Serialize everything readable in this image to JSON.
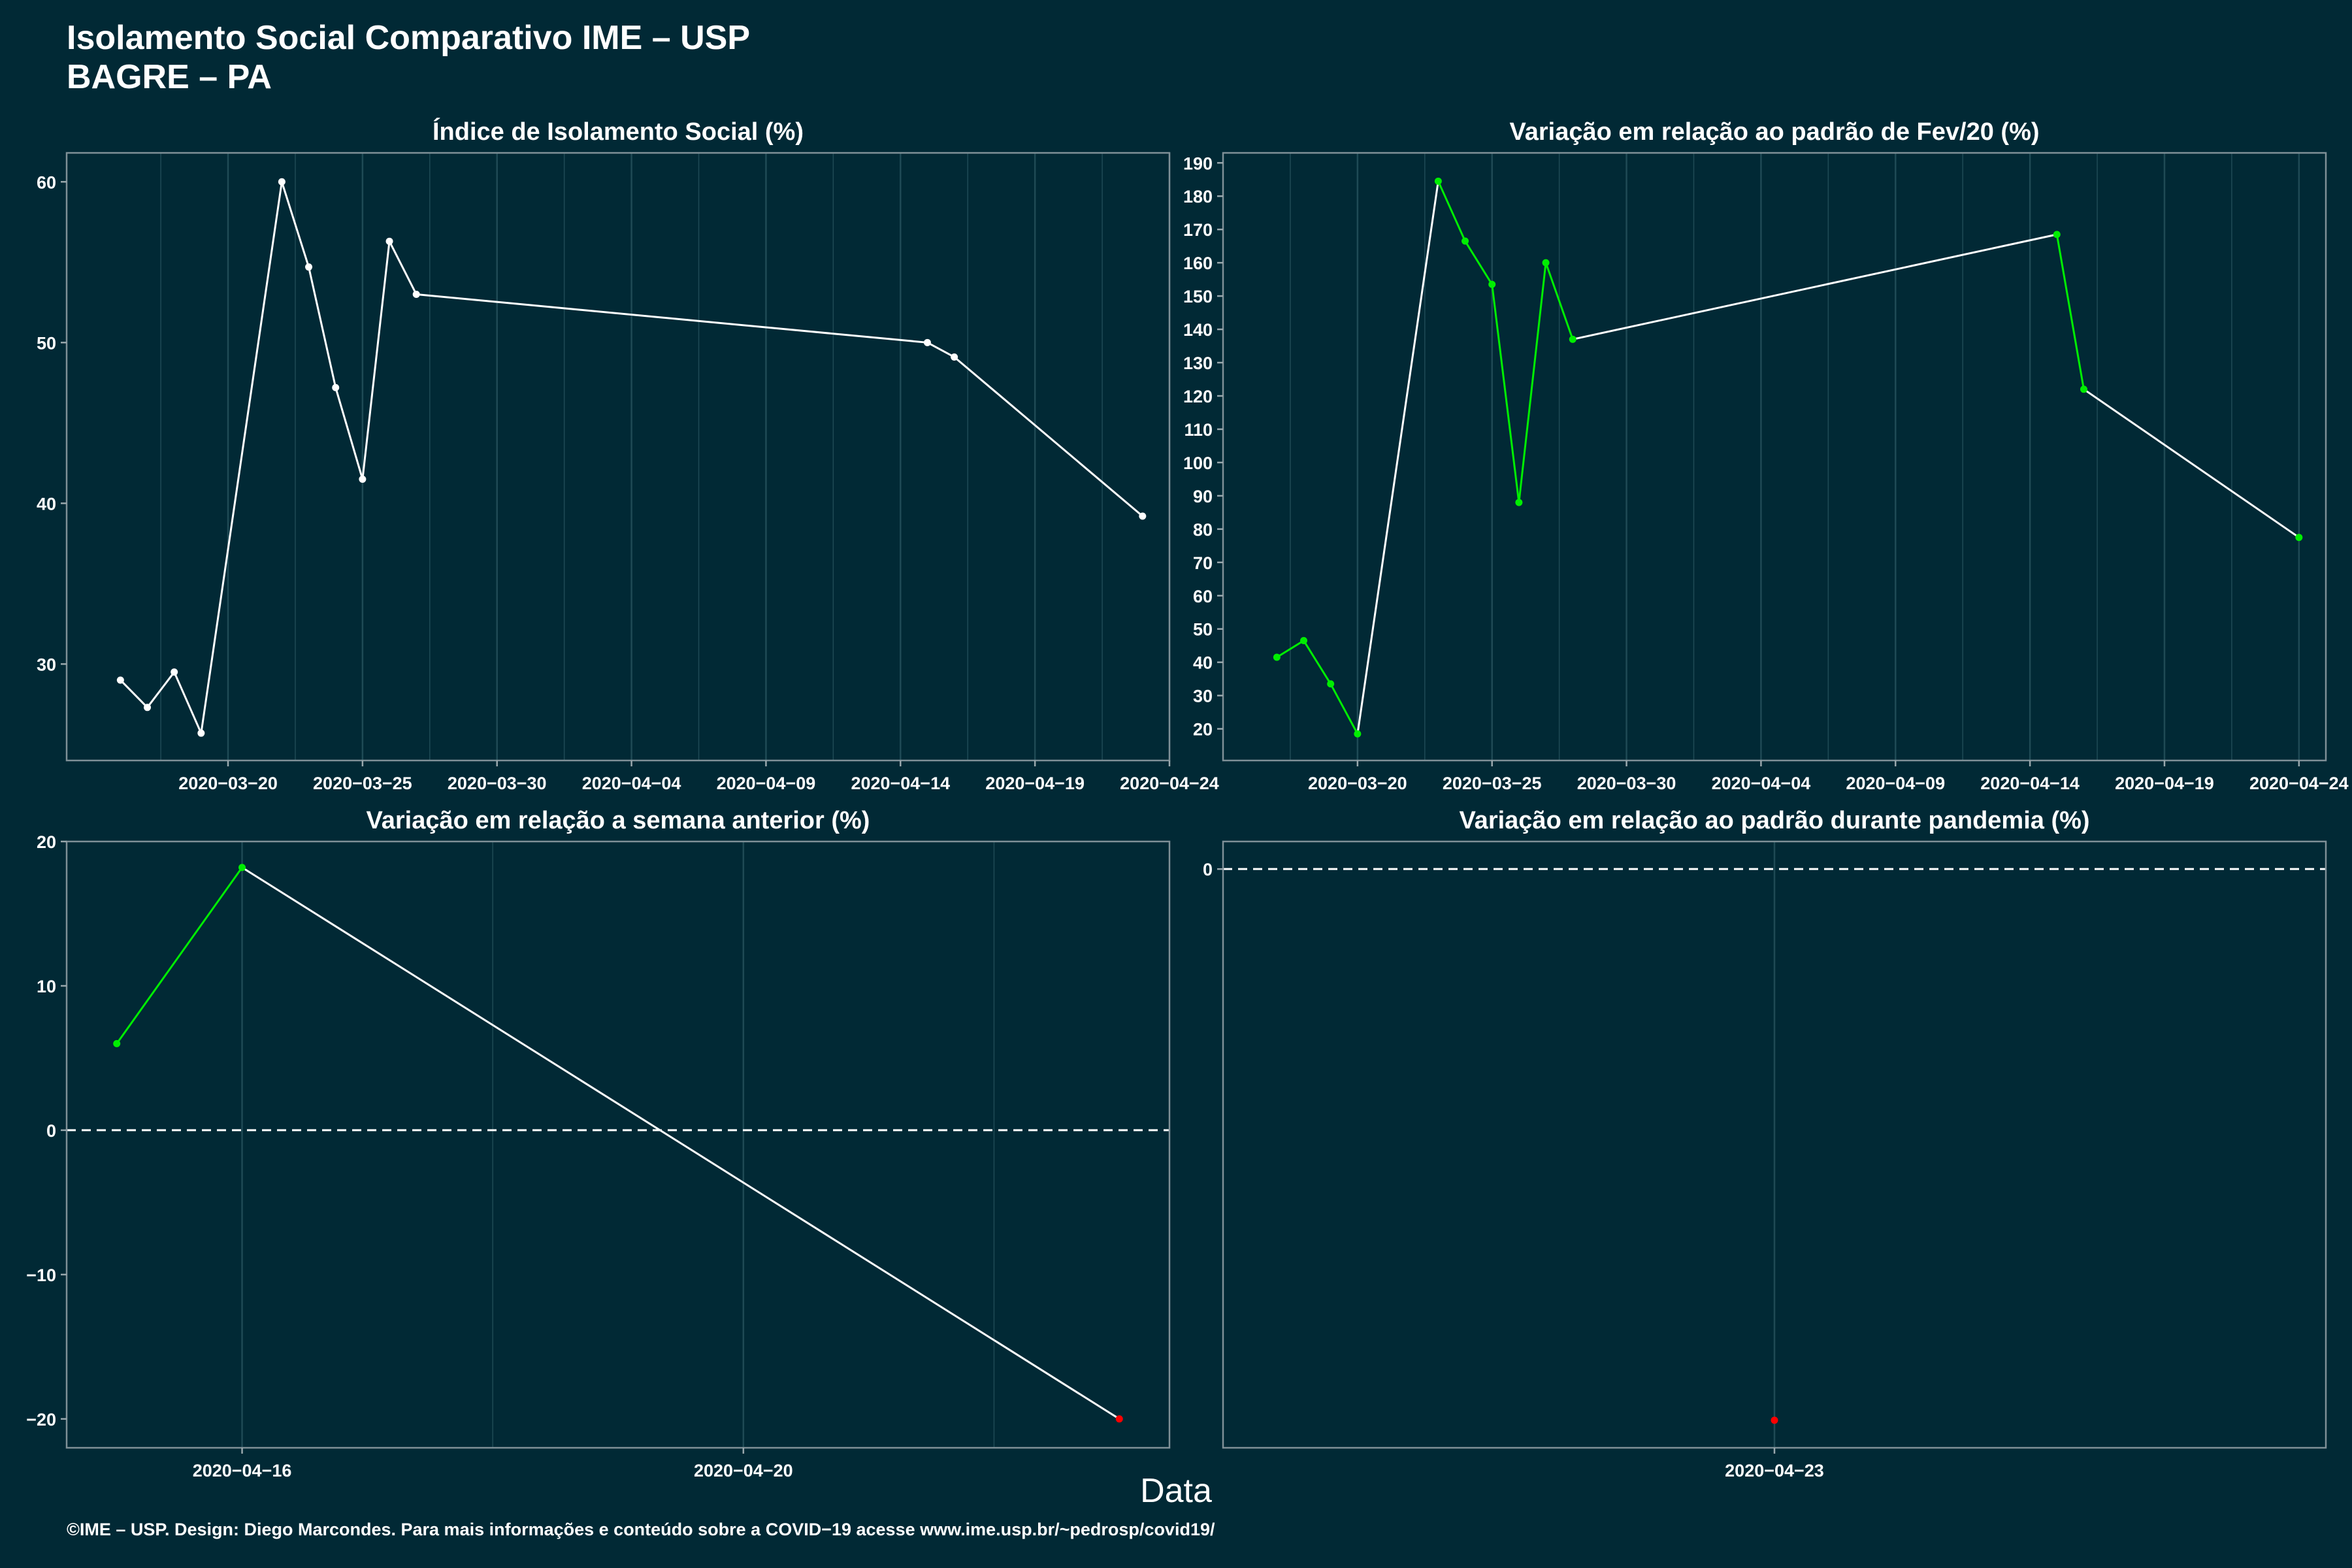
{
  "header": {
    "title_line1": "Isolamento Social Comparativo IME – USP",
    "title_line2": "BAGRE – PA"
  },
  "xlabel": "Data",
  "footer": "©IME – USP. Design: Diego Marcondes. Para mais informações e conteúdo sobre a COVID−19 acesse www.ime.usp.br/~pedrosp/covid19/",
  "colors": {
    "background": "#012935",
    "line": "#ffffff",
    "increase": "#00ee00",
    "decrease": "#ff0000",
    "grid": "#1f4a55"
  },
  "chart_data": [
    {
      "type": "line",
      "title": "Índice de Isolamento Social (%)",
      "x": [
        "2020-03-16",
        "2020-03-17",
        "2020-03-18",
        "2020-03-19",
        "2020-03-22",
        "2020-03-23",
        "2020-03-24",
        "2020-03-25",
        "2020-03-26",
        "2020-03-27",
        "2020-04-15",
        "2020-04-16",
        "2020-04-23"
      ],
      "y": [
        29.0,
        27.3,
        29.5,
        25.7,
        60.0,
        54.7,
        47.2,
        41.5,
        56.3,
        53.0,
        50.0,
        49.1,
        39.2
      ],
      "point_colors": [
        "white",
        "white",
        "white",
        "white",
        "white",
        "white",
        "white",
        "white",
        "white",
        "white",
        "white",
        "white",
        "white"
      ],
      "xlim": [
        "2020-03-14",
        "2020-04-24"
      ],
      "ylim": [
        24.0,
        61.8
      ],
      "yticks": [
        30,
        40,
        50,
        60
      ],
      "xticks": [
        "2020-03-20",
        "2020-03-25",
        "2020-03-30",
        "2020-04-04",
        "2020-04-09",
        "2020-04-14",
        "2020-04-19",
        "2020-04-24"
      ],
      "xlabel": "",
      "ylabel": ""
    },
    {
      "type": "line",
      "title": "Variação em relação ao padrão de Fev/20 (%)",
      "x": [
        "2020-03-17",
        "2020-03-18",
        "2020-03-19",
        "2020-03-20",
        "2020-03-23",
        "2020-03-24",
        "2020-03-25",
        "2020-03-26",
        "2020-03-27",
        "2020-03-28",
        "2020-04-15",
        "2020-04-16",
        "2020-04-24"
      ],
      "y": [
        41.5,
        46.5,
        33.5,
        18.5,
        184.5,
        166.5,
        153.5,
        88,
        160,
        137,
        168.5,
        122,
        77.5
      ],
      "point_colors": [
        "green",
        "green",
        "green",
        "green",
        "green",
        "green",
        "green",
        "green",
        "green",
        "green",
        "green",
        "green",
        "green"
      ],
      "xlim": [
        "2020-03-15",
        "2020-04-25"
      ],
      "ylim": [
        10.5,
        193
      ],
      "yticks": [
        20,
        30,
        40,
        50,
        60,
        70,
        80,
        90,
        100,
        110,
        120,
        130,
        140,
        150,
        160,
        170,
        180,
        190
      ],
      "xticks": [
        "2020-03-20",
        "2020-03-25",
        "2020-03-30",
        "2020-04-04",
        "2020-04-09",
        "2020-04-14",
        "2020-04-19",
        "2020-04-24"
      ],
      "xlabel": "",
      "ylabel": ""
    },
    {
      "type": "line",
      "title": "Variação em relação a semana anterior (%)",
      "x": [
        "2020-04-15",
        "2020-04-16",
        "2020-04-23"
      ],
      "y": [
        6.0,
        18.2,
        -20.0
      ],
      "point_colors": [
        "green",
        "green",
        "red"
      ],
      "xlim": [
        "2020-04-14.6",
        "2020-04-23.4"
      ],
      "ylim": [
        -22.0,
        20.0
      ],
      "yticks": [
        -20,
        -10,
        0,
        10,
        20
      ],
      "xticks": [
        "2020-04-16",
        "2020-04-20"
      ],
      "reference_line": 0,
      "xlabel": "",
      "ylabel": ""
    },
    {
      "type": "scatter",
      "title": "Variação em relação ao padrão durante pandemia (%)",
      "x": [
        "2020-04-23"
      ],
      "y": [
        -20.0
      ],
      "point_colors": [
        "red"
      ],
      "xlim": [
        "2020-04-22",
        "2020-04-24"
      ],
      "ylim": [
        -21.0,
        1.0
      ],
      "yticks": [
        0
      ],
      "xticks": [
        "2020-04-23"
      ],
      "reference_line": 0,
      "xlabel": "",
      "ylabel": ""
    }
  ]
}
